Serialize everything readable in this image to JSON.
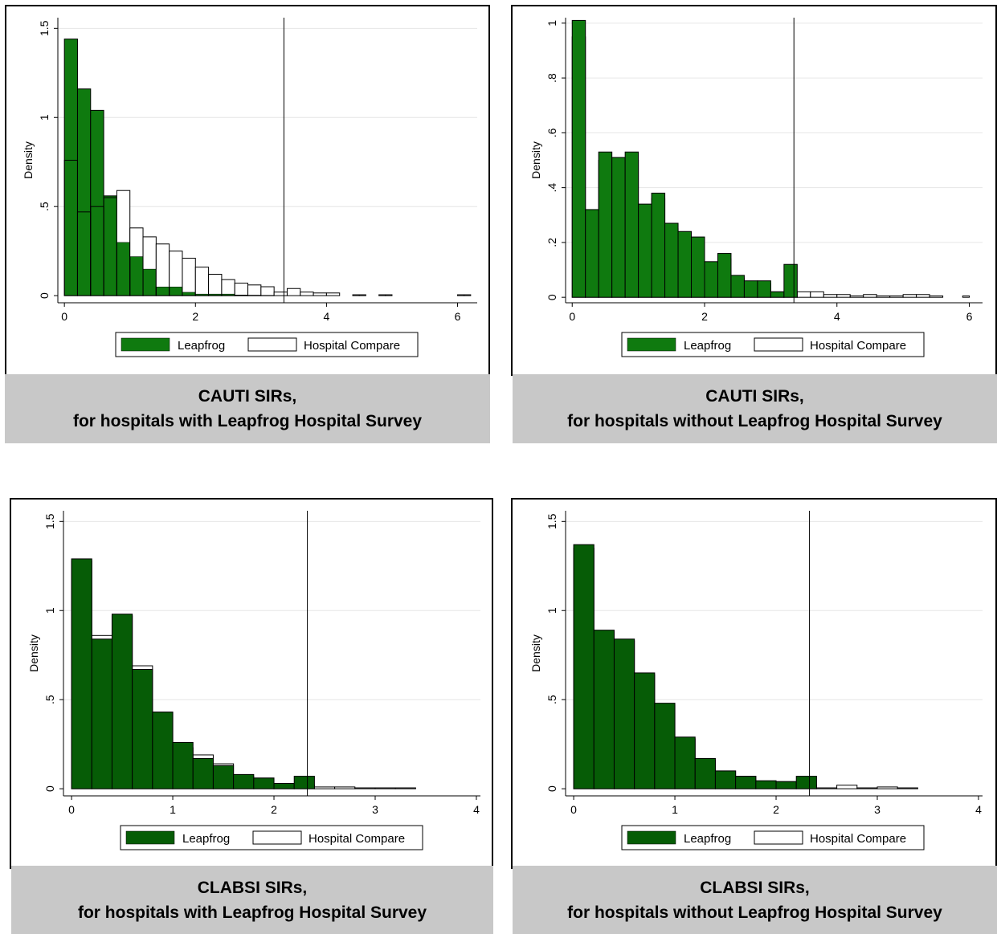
{
  "colors": {
    "leapfrog": "#0f7a0f",
    "leapfrog_dark": "#065c06",
    "hospital_compare": "#ffffff",
    "grid": "#e6e6e6",
    "caption_bg": "#c8c8c8"
  },
  "legend": {
    "leapfrog": "Leapfrog",
    "hospital_compare": "Hospital Compare"
  },
  "captions": [
    {
      "line1": "CAUTI SIRs,",
      "line2": "for hospitals with Leapfrog Hospital Survey"
    },
    {
      "line1": "CAUTI SIRs,",
      "line2": "for hospitals without Leapfrog Hospital Survey"
    },
    {
      "line1": "CLABSI SIRs,",
      "line2": "for hospitals with Leapfrog Hospital Survey"
    },
    {
      "line1": "CLABSI SIRs,",
      "line2": "for hospitals without Leapfrog Hospital Survey"
    }
  ],
  "chart_data": [
    {
      "type": "bar",
      "ylabel": "Density",
      "xlim": [
        -0.1,
        6.3
      ],
      "ylim": [
        -0.04,
        1.56
      ],
      "xticks": [
        0,
        2,
        4,
        6
      ],
      "yticks": [
        0,
        0.5,
        1,
        1.5
      ],
      "ytick_labels": [
        "0",
        ".5",
        "1",
        "1.5"
      ],
      "reference_line_x": 3.35,
      "bin_width": 0.2,
      "bin_start": 0,
      "front_series": "Hospital Compare",
      "series": [
        {
          "name": "Leapfrog",
          "values": [
            1.44,
            1.16,
            1.04,
            0.56,
            0.3,
            0.22,
            0.15,
            0.05,
            0.05,
            0.02,
            0.01,
            0.01,
            0.01,
            0.005,
            0.004,
            0.003,
            0,
            0,
            0,
            0,
            0
          ]
        },
        {
          "name": "Hospital Compare",
          "values": [
            0.76,
            0.47,
            0.5,
            0.55,
            0.59,
            0.38,
            0.33,
            0.29,
            0.25,
            0.21,
            0.16,
            0.12,
            0.09,
            0.07,
            0.06,
            0.05,
            0.02,
            0.04,
            0.02,
            0.015,
            0.015
          ]
        }
      ],
      "sparse_series": {
        "name": "Hospital Compare",
        "x": [
          4.4,
          4.5,
          4.8,
          4.9,
          6.0,
          6.1
        ],
        "values": [
          0.005,
          0.005,
          0.005,
          0.005,
          0.005,
          0.005
        ]
      }
    },
    {
      "type": "bar",
      "ylabel": "Density",
      "xlim": [
        -0.1,
        6.2
      ],
      "ylim": [
        -0.02,
        1.02
      ],
      "xticks": [
        0,
        2,
        4,
        6
      ],
      "yticks": [
        0,
        0.2,
        0.4,
        0.6,
        0.8,
        1
      ],
      "ytick_labels": [
        "0",
        ".2",
        ".4",
        ".6",
        ".8",
        "1"
      ],
      "reference_line_x": 3.35,
      "bin_width": 0.2,
      "bin_start": 0,
      "front_series": "Leapfrog",
      "series": [
        {
          "name": "Leapfrog",
          "values": [
            1.01,
            0.32,
            0.53,
            0.51,
            0.53,
            0.34,
            0.38,
            0.27,
            0.24,
            0.22,
            0.13,
            0.16,
            0.08,
            0.06,
            0.06,
            0.02,
            0.12,
            0,
            0,
            0,
            0,
            0,
            0,
            0,
            0,
            0,
            0,
            0
          ]
        },
        {
          "name": "Hospital Compare",
          "values": [
            0.95,
            0.3,
            0.5,
            0.48,
            0.5,
            0.32,
            0.36,
            0.25,
            0.22,
            0.2,
            0.12,
            0.14,
            0.07,
            0.05,
            0.05,
            0.02,
            0.02,
            0.02,
            0.02,
            0.01,
            0.01,
            0.005,
            0.01,
            0.005,
            0.005,
            0.01,
            0.01,
            0.005
          ]
        }
      ],
      "sparse_series": {
        "name": "Hospital Compare",
        "x": [
          5.9
        ],
        "values": [
          0.005
        ]
      }
    },
    {
      "type": "bar",
      "ylabel": "Density",
      "xlim": [
        -0.08,
        4.04
      ],
      "ylim": [
        -0.04,
        1.56
      ],
      "xticks": [
        0,
        1,
        2,
        3,
        4
      ],
      "yticks": [
        0,
        0.5,
        1,
        1.5
      ],
      "ytick_labels": [
        "0",
        ".5",
        "1",
        "1.5"
      ],
      "reference_line_x": 2.33,
      "bin_width": 0.2,
      "bin_start": 0,
      "front_series": "Leapfrog",
      "series": [
        {
          "name": "Leapfrog",
          "values": [
            1.29,
            0.84,
            0.98,
            0.67,
            0.43,
            0.26,
            0.17,
            0.13,
            0.08,
            0.06,
            0.03,
            0.07,
            0,
            0,
            0,
            0,
            0
          ]
        },
        {
          "name": "Hospital Compare",
          "values": [
            1.28,
            0.86,
            0.97,
            0.69,
            0.43,
            0.23,
            0.19,
            0.14,
            0.07,
            0.06,
            0.02,
            0.02,
            0.01,
            0.01,
            0.005,
            0.005,
            0.005
          ]
        }
      ]
    },
    {
      "type": "bar",
      "ylabel": "Density",
      "xlim": [
        -0.08,
        4.04
      ],
      "ylim": [
        -0.04,
        1.56
      ],
      "xticks": [
        0,
        1,
        2,
        3,
        4
      ],
      "yticks": [
        0,
        0.5,
        1,
        1.5
      ],
      "ytick_labels": [
        "0",
        ".5",
        "1",
        "1.5"
      ],
      "reference_line_x": 2.33,
      "bin_width": 0.2,
      "bin_start": 0,
      "front_series": "Leapfrog",
      "series": [
        {
          "name": "Leapfrog",
          "values": [
            1.37,
            0.89,
            0.84,
            0.65,
            0.48,
            0.29,
            0.17,
            0.1,
            0.07,
            0.045,
            0.04,
            0.07,
            0,
            0,
            0,
            0,
            0
          ]
        },
        {
          "name": "Hospital Compare",
          "values": [
            1.35,
            0.88,
            0.83,
            0.64,
            0.47,
            0.28,
            0.16,
            0.1,
            0.07,
            0.04,
            0.04,
            0.02,
            0.005,
            0.02,
            0.005,
            0.01,
            0.005
          ]
        }
      ]
    }
  ]
}
